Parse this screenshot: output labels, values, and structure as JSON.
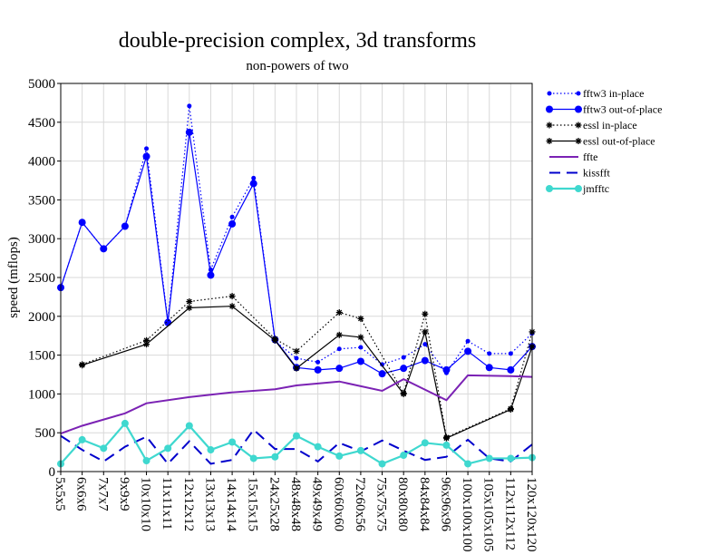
{
  "chart_data": {
    "type": "line",
    "title": "double-precision complex, 3d transforms",
    "subtitle": "non-powers of two",
    "xlabel": "",
    "ylabel": "speed (mflops)",
    "ylim": [
      0,
      5000
    ],
    "yticks": [
      0,
      500,
      1000,
      1500,
      2000,
      2500,
      3000,
      3500,
      4000,
      4500,
      5000
    ],
    "grid": true,
    "legend_position": "top-right",
    "categories": [
      "5x5x5",
      "6x6x6",
      "7x7x7",
      "9x9x9",
      "10x10x10",
      "11x11x11",
      "12x12x12",
      "13x13x13",
      "14x14x14",
      "15x15x15",
      "24x25x28",
      "48x48x48",
      "49x49x49",
      "60x60x60",
      "72x60x56",
      "75x75x75",
      "80x80x80",
      "84x84x84",
      "96x96x96",
      "100x100x100",
      "105x105x105",
      "112x112x112",
      "120x120x120"
    ],
    "series": [
      {
        "name": "fftw3 in-place",
        "color": "#0000ff",
        "style": "dotted",
        "marker": "dot-small",
        "values": [
          2370,
          3210,
          2870,
          3160,
          4160,
          1940,
          4710,
          2600,
          3280,
          3780,
          1680,
          1460,
          1410,
          1580,
          1600,
          1380,
          1470,
          1640,
          1270,
          1680,
          1520,
          1520,
          1780
        ]
      },
      {
        "name": "fftw3 out-of-place",
        "color": "#0000ff",
        "style": "solid",
        "marker": "dot",
        "values": [
          2370,
          3210,
          2870,
          3160,
          4060,
          1920,
          4370,
          2530,
          3190,
          3710,
          1700,
          1340,
          1310,
          1330,
          1420,
          1260,
          1330,
          1430,
          1310,
          1550,
          1340,
          1310,
          1610
        ]
      },
      {
        "name": "essl in-place",
        "color": "#000000",
        "style": "dotted",
        "marker": "star",
        "values": [
          null,
          1380,
          null,
          null,
          1690,
          null,
          2190,
          null,
          2260,
          null,
          1710,
          1550,
          null,
          2050,
          1970,
          null,
          1010,
          2030,
          440,
          null,
          null,
          810,
          1800
        ]
      },
      {
        "name": "essl out-of-place",
        "color": "#000000",
        "style": "solid",
        "marker": "star",
        "values": [
          null,
          1370,
          null,
          null,
          1640,
          null,
          2110,
          null,
          2130,
          null,
          1690,
          1330,
          null,
          1760,
          1730,
          null,
          1000,
          1800,
          430,
          null,
          null,
          800,
          1610
        ]
      },
      {
        "name": "ffte",
        "color": "#7b22b4",
        "style": "solid",
        "marker": "none",
        "values": [
          490,
          590,
          null,
          750,
          880,
          null,
          960,
          null,
          1020,
          null,
          1060,
          1110,
          null,
          1160,
          null,
          1040,
          1190,
          null,
          920,
          1240,
          null,
          1230,
          1220
        ]
      },
      {
        "name": "kissfft",
        "color": "#0000cc",
        "style": "dashed",
        "marker": "none",
        "values": [
          460,
          280,
          130,
          320,
          450,
          100,
          390,
          100,
          150,
          540,
          290,
          290,
          130,
          370,
          260,
          400,
          270,
          150,
          190,
          410,
          170,
          130,
          350
        ]
      },
      {
        "name": "jmfftc",
        "color": "#3fd8cf",
        "style": "solid",
        "marker": "dot",
        "values": [
          100,
          410,
          300,
          620,
          140,
          300,
          590,
          280,
          380,
          170,
          190,
          460,
          320,
          200,
          270,
          100,
          210,
          370,
          340,
          100,
          170,
          170,
          180
        ]
      }
    ]
  }
}
